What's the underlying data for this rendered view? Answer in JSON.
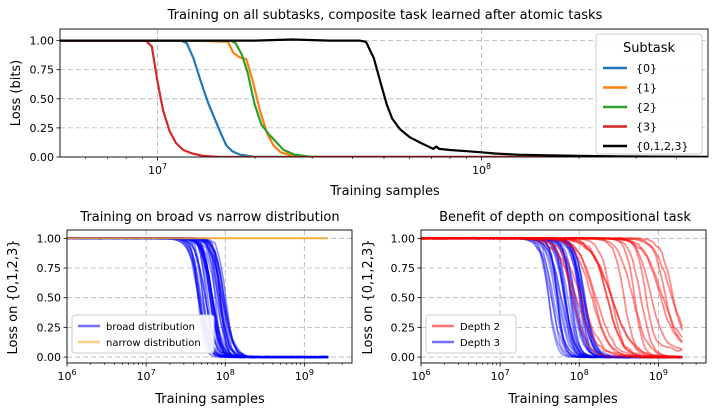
{
  "chart_data": [
    {
      "type": "line",
      "title": "Training on all subtasks, composite task learned after atomic tasks",
      "xlabel": "Training samples",
      "ylabel": "Loss (bits)",
      "xscale": "log",
      "xlim": [
        5000000,
        500000000
      ],
      "ylim": [
        0,
        1.1
      ],
      "xticks": [
        {
          "value": 10000000,
          "base": "10",
          "exp": "7"
        },
        {
          "value": 100000000,
          "base": "10",
          "exp": "8"
        }
      ],
      "yticks": [
        "0.00",
        "0.25",
        "0.50",
        "0.75",
        "1.00"
      ],
      "grid": true,
      "legend": {
        "title": "Subtask",
        "position": "top-right"
      },
      "series": [
        {
          "name": "{0}",
          "color": "#1f77b4",
          "x": [
            5000000,
            11800000,
            12300000,
            12900000,
            13600000,
            14300000,
            15000000,
            15700000,
            16300000,
            17000000,
            18000000,
            20000000,
            500000000
          ],
          "y": [
            1.0,
            1.0,
            0.98,
            0.85,
            0.65,
            0.47,
            0.33,
            0.2,
            0.1,
            0.05,
            0.02,
            0.0,
            0.0
          ]
        },
        {
          "name": "{1}",
          "color": "#ff7f0e",
          "x": [
            5000000,
            13000000,
            16500000,
            17100000,
            17800000,
            18800000,
            19700000,
            20700000,
            21800000,
            22800000,
            24000000,
            27000000,
            500000000
          ],
          "y": [
            1.0,
            1.0,
            0.99,
            0.9,
            0.86,
            0.84,
            0.65,
            0.4,
            0.2,
            0.1,
            0.04,
            0.0,
            0.0
          ]
        },
        {
          "name": "{2}",
          "color": "#2ca02c",
          "x": [
            5000000,
            16800000,
            17400000,
            18200000,
            19000000,
            19900000,
            20900000,
            22000000,
            23200000,
            24500000,
            26500000,
            30000000,
            500000000
          ],
          "y": [
            1.0,
            1.0,
            0.98,
            0.88,
            0.72,
            0.46,
            0.28,
            0.2,
            0.13,
            0.06,
            0.02,
            0.0,
            0.0
          ]
        },
        {
          "name": "{3}",
          "color": "#d62728",
          "x": [
            5000000,
            9200000,
            9600000,
            10000000,
            10400000,
            10900000,
            11400000,
            12000000,
            12800000,
            13800000,
            15500000,
            500000000
          ],
          "y": [
            1.0,
            1.0,
            0.95,
            0.65,
            0.4,
            0.22,
            0.12,
            0.06,
            0.03,
            0.01,
            0.0,
            0.0
          ]
        },
        {
          "name": "{0,1,2,3}",
          "color": "#000000",
          "x": [
            5000000,
            16000000,
            20000000,
            26000000,
            34000000,
            42000000,
            44000000,
            46500000,
            49000000,
            51000000,
            53000000,
            56000000,
            60000000,
            65000000,
            71000000,
            72500000,
            74000000,
            80000000,
            90000000,
            100000000,
            110000000,
            130000000,
            160000000,
            200000000,
            260000000,
            500000000
          ],
          "y": [
            1.0,
            1.0,
            1.0,
            1.01,
            1.0,
            1.0,
            0.99,
            0.85,
            0.62,
            0.45,
            0.33,
            0.24,
            0.17,
            0.12,
            0.07,
            0.09,
            0.07,
            0.06,
            0.05,
            0.04,
            0.03,
            0.02,
            0.015,
            0.01,
            0.005,
            0.0
          ]
        }
      ]
    },
    {
      "type": "line",
      "title": "Training on broad vs narrow distribution",
      "xlabel": "Training samples",
      "ylabel": "Loss on {0,1,2,3}",
      "xscale": "log",
      "xlim": [
        1000000,
        4000000000
      ],
      "ylim": [
        -0.05,
        1.07
      ],
      "xticks": [
        {
          "value": 1000000,
          "base": "10",
          "exp": "6"
        },
        {
          "value": 10000000,
          "base": "10",
          "exp": "7"
        },
        {
          "value": 100000000,
          "base": "10",
          "exp": "8"
        },
        {
          "value": 1000000000,
          "base": "10",
          "exp": "9"
        }
      ],
      "yticks": [
        "0.00",
        "0.25",
        "0.50",
        "0.75",
        "1.00"
      ],
      "grid": true,
      "legend": {
        "position": "lower-left"
      },
      "series": [
        {
          "name": "broad distribution",
          "color": "#0000ff",
          "x_end": 2000000000,
          "transition_range": [
            45000000,
            110000000
          ],
          "runs": 40
        },
        {
          "name": "narrow distribution",
          "color": "#f5a623",
          "x": [
            1000000,
            2000000000
          ],
          "y": [
            1.0,
            1.0
          ]
        }
      ]
    },
    {
      "type": "line",
      "title": "Benefit of depth on compositional task",
      "xlabel": "Training samples",
      "ylabel": "Loss on {0,1,2,3}",
      "xscale": "log",
      "xlim": [
        1000000,
        4000000000
      ],
      "ylim": [
        -0.05,
        1.07
      ],
      "xticks": [
        {
          "value": 1000000,
          "base": "10",
          "exp": "6"
        },
        {
          "value": 10000000,
          "base": "10",
          "exp": "7"
        },
        {
          "value": 100000000,
          "base": "10",
          "exp": "8"
        },
        {
          "value": 1000000000,
          "base": "10",
          "exp": "9"
        }
      ],
      "yticks": [
        "0.00",
        "0.25",
        "0.50",
        "0.75",
        "1.00"
      ],
      "grid": true,
      "legend": {
        "position": "lower-left"
      },
      "series": [
        {
          "name": "Depth 2",
          "color": "#ff0000",
          "x_end": 2000000000,
          "transition_range": [
            80000000,
            1500000000
          ],
          "runs": 22
        },
        {
          "name": "Depth 3",
          "color": "#0000ff",
          "x_end": 2000000000,
          "transition_range": [
            40000000,
            120000000
          ],
          "runs": 40
        }
      ]
    }
  ]
}
